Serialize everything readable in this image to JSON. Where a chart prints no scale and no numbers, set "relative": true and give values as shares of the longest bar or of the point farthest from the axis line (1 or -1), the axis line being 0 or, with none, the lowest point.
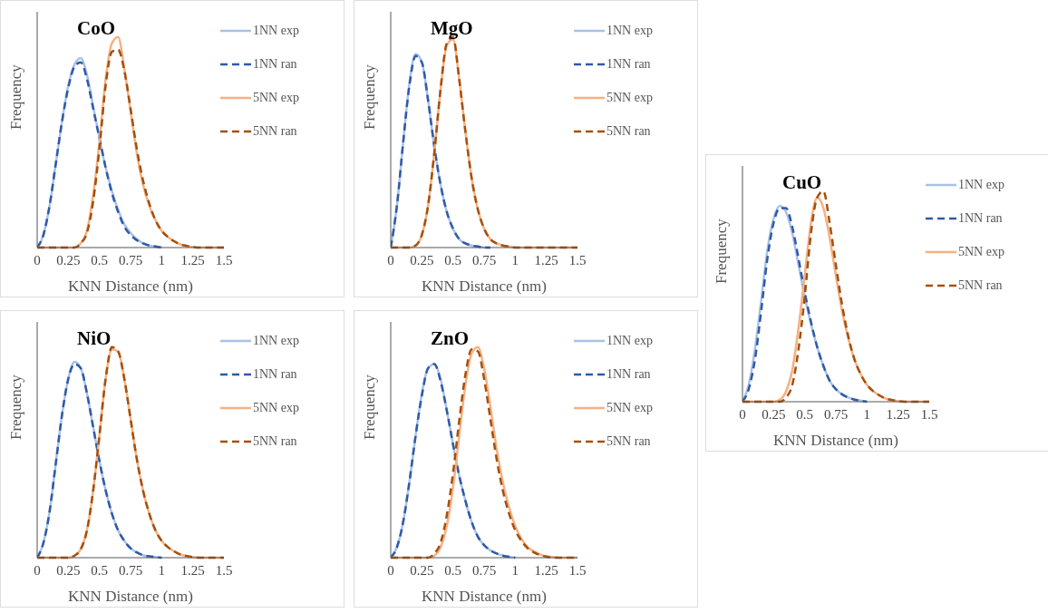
{
  "chart_data": [
    {
      "type": "line",
      "title": "CoO",
      "xlabel": "KNN Distance (nm)",
      "ylabel": "Frequency",
      "relative": true,
      "legend": "top right",
      "marker": "none",
      "grid": false,
      "x": [
        0,
        0.05,
        0.1,
        0.15,
        0.2,
        0.25,
        0.3,
        0.35,
        0.4,
        0.45,
        0.5,
        0.55,
        0.6,
        0.65,
        0.7,
        0.75,
        0.8,
        0.85,
        0.9,
        0.95,
        1,
        1.05,
        1.1,
        1.15,
        1.2,
        1.25,
        1.3,
        1.35,
        1.4,
        1.45,
        1.5
      ],
      "xlim": [
        0,
        1.5
      ],
      "xticks": [
        0,
        0.25,
        0.5,
        0.75,
        1,
        1.25,
        1.5
      ],
      "series": [
        {
          "name": "1NN exp",
          "color": "#a9c1e6",
          "line_style": "solid",
          "values": [
            0,
            0.06,
            0.2,
            0.4,
            0.6,
            0.77,
            0.87,
            0.9,
            0.82,
            0.67,
            0.52,
            0.38,
            0.27,
            0.18,
            0.11,
            0.07,
            0.04,
            0.02,
            0.01,
            0.005,
            0,
            null,
            null,
            null,
            null,
            null,
            null,
            null,
            null,
            null,
            null
          ]
        },
        {
          "name": "1NN ran",
          "color": "#2f5aa8",
          "line_style": "dashed",
          "values": [
            0,
            0.06,
            0.2,
            0.4,
            0.6,
            0.76,
            0.86,
            0.88,
            0.8,
            0.66,
            0.52,
            0.38,
            0.26,
            0.17,
            0.1,
            0.06,
            0.035,
            0.02,
            0.01,
            0.005,
            0,
            null,
            null,
            null,
            null,
            null,
            null,
            null,
            null,
            null,
            null
          ]
        },
        {
          "name": "5NN exp",
          "color": "#f4b183",
          "line_style": "solid",
          "values": [
            0,
            0,
            0,
            0,
            0,
            0,
            0,
            0.02,
            0.08,
            0.25,
            0.5,
            0.8,
            0.97,
            1,
            0.85,
            0.65,
            0.45,
            0.3,
            0.2,
            0.13,
            0.08,
            0.05,
            0.03,
            0.015,
            0.008,
            0.003,
            0,
            0,
            0,
            0,
            0
          ]
        },
        {
          "name": "5NN ran",
          "color": "#a5500c",
          "line_style": "dashed",
          "values": [
            0,
            0,
            0,
            0,
            0,
            0,
            0,
            0.02,
            0.07,
            0.22,
            0.47,
            0.77,
            0.93,
            0.94,
            0.84,
            0.66,
            0.47,
            0.32,
            0.21,
            0.13,
            0.08,
            0.05,
            0.03,
            0.015,
            0.008,
            0.003,
            0,
            0,
            0,
            0,
            0
          ]
        }
      ]
    },
    {
      "type": "line",
      "title": "MgO",
      "xlabel": "KNN Distance (nm)",
      "ylabel": "Frequency",
      "relative": true,
      "legend": "top right",
      "marker": "none",
      "grid": false,
      "x": [
        0,
        0.05,
        0.1,
        0.15,
        0.2,
        0.25,
        0.3,
        0.35,
        0.4,
        0.45,
        0.5,
        0.55,
        0.6,
        0.65,
        0.7,
        0.75,
        0.8,
        0.85,
        0.9,
        0.95,
        1,
        1.05,
        1.1,
        1.15,
        1.2,
        1.25,
        1.3,
        1.35,
        1.4,
        1.45,
        1.5
      ],
      "xlim": [
        0,
        1.5
      ],
      "xticks": [
        0,
        0.25,
        0.5,
        0.75,
        1,
        1.25,
        1.5
      ],
      "series": [
        {
          "name": "1NN exp",
          "color": "#a9c1e6",
          "line_style": "solid",
          "values": [
            0,
            0.2,
            0.5,
            0.78,
            0.92,
            0.88,
            0.7,
            0.48,
            0.3,
            0.17,
            0.09,
            0.04,
            0.02,
            0.01,
            0.005,
            0,
            0,
            null,
            null,
            null,
            null,
            null,
            null,
            null,
            null,
            null,
            null,
            null,
            null,
            null,
            null
          ]
        },
        {
          "name": "1NN ran",
          "color": "#2f5aa8",
          "line_style": "dashed",
          "values": [
            0,
            0.2,
            0.5,
            0.77,
            0.91,
            0.88,
            0.7,
            0.48,
            0.3,
            0.17,
            0.09,
            0.04,
            0.02,
            0.01,
            0.005,
            0,
            0,
            null,
            null,
            null,
            null,
            null,
            null,
            null,
            null,
            null,
            null,
            null,
            null,
            null,
            null
          ]
        },
        {
          "name": "5NN exp",
          "color": "#f4b183",
          "line_style": "solid",
          "values": [
            0,
            0,
            0,
            0,
            0.01,
            0.06,
            0.2,
            0.45,
            0.75,
            0.96,
            0.99,
            0.8,
            0.55,
            0.33,
            0.18,
            0.09,
            0.04,
            0.02,
            0.01,
            0.005,
            0,
            0,
            0,
            0,
            0,
            0,
            0,
            0,
            0,
            0,
            0
          ]
        },
        {
          "name": "5NN ran",
          "color": "#a5500c",
          "line_style": "dashed",
          "values": [
            0,
            0,
            0,
            0,
            0.01,
            0.06,
            0.2,
            0.45,
            0.75,
            0.97,
            1,
            0.8,
            0.55,
            0.33,
            0.18,
            0.09,
            0.04,
            0.02,
            0.01,
            0.005,
            0,
            0,
            0,
            0,
            0,
            0,
            0,
            0,
            0,
            0,
            0
          ]
        }
      ]
    },
    {
      "type": "line",
      "title": "CuO",
      "xlabel": "KNN Distance (nm)",
      "ylabel": "Frequency",
      "relative": true,
      "legend": "top right",
      "marker": "none",
      "grid": false,
      "x": [
        0,
        0.05,
        0.1,
        0.15,
        0.2,
        0.25,
        0.3,
        0.35,
        0.4,
        0.45,
        0.5,
        0.55,
        0.6,
        0.65,
        0.7,
        0.75,
        0.8,
        0.85,
        0.9,
        0.95,
        1,
        1.05,
        1.1,
        1.15,
        1.2,
        1.25,
        1.3,
        1.35,
        1.4,
        1.45,
        1.5
      ],
      "xlim": [
        0,
        1.5
      ],
      "xticks": [
        0,
        0.25,
        0.5,
        0.75,
        1,
        1.25,
        1.5
      ],
      "series": [
        {
          "name": "1NN exp",
          "color": "#a9c1e6",
          "line_style": "solid",
          "values": [
            0,
            0.08,
            0.25,
            0.48,
            0.72,
            0.87,
            0.93,
            0.9,
            0.8,
            0.65,
            0.5,
            0.37,
            0.26,
            0.17,
            0.1,
            0.06,
            0.035,
            0.02,
            0.01,
            0.005,
            0,
            null,
            null,
            null,
            null,
            null,
            null,
            null,
            null,
            null,
            null
          ]
        },
        {
          "name": "1NN ran",
          "color": "#2f5aa8",
          "line_style": "dashed",
          "values": [
            0,
            0.06,
            0.2,
            0.43,
            0.68,
            0.85,
            0.92,
            0.92,
            0.83,
            0.68,
            0.52,
            0.38,
            0.26,
            0.17,
            0.1,
            0.06,
            0.035,
            0.02,
            0.01,
            0.005,
            0,
            null,
            null,
            null,
            null,
            null,
            null,
            null,
            null,
            null,
            null
          ]
        },
        {
          "name": "5NN exp",
          "color": "#f4b183",
          "line_style": "solid",
          "values": [
            0,
            0,
            0,
            0,
            0,
            0,
            0.01,
            0.05,
            0.15,
            0.35,
            0.6,
            0.85,
            0.97,
            0.92,
            0.78,
            0.6,
            0.43,
            0.3,
            0.2,
            0.13,
            0.08,
            0.05,
            0.03,
            0.015,
            0.008,
            0.003,
            0,
            0,
            0,
            0,
            0
          ]
        },
        {
          "name": "5NN ran",
          "color": "#a5500c",
          "line_style": "dashed",
          "values": [
            0,
            0,
            0,
            0,
            0,
            0,
            0,
            0.02,
            0.08,
            0.25,
            0.5,
            0.8,
            0.97,
            1,
            0.85,
            0.65,
            0.46,
            0.31,
            0.2,
            0.13,
            0.08,
            0.05,
            0.03,
            0.015,
            0.008,
            0.003,
            0,
            0,
            0,
            0,
            0
          ]
        }
      ]
    },
    {
      "type": "line",
      "title": "NiO",
      "xlabel": "KNN Distance (nm)",
      "ylabel": "Frequency",
      "relative": true,
      "legend": "top right",
      "marker": "none",
      "grid": false,
      "x": [
        0,
        0.05,
        0.1,
        0.15,
        0.2,
        0.25,
        0.3,
        0.35,
        0.4,
        0.45,
        0.5,
        0.55,
        0.6,
        0.65,
        0.7,
        0.75,
        0.8,
        0.85,
        0.9,
        0.95,
        1,
        1.05,
        1.1,
        1.15,
        1.2,
        1.25,
        1.3,
        1.35,
        1.4,
        1.45,
        1.5
      ],
      "xlim": [
        0,
        1.5
      ],
      "xticks": [
        0,
        0.25,
        0.5,
        0.75,
        1,
        1.25,
        1.5
      ],
      "series": [
        {
          "name": "1NN exp",
          "color": "#a9c1e6",
          "line_style": "solid",
          "values": [
            0,
            0.07,
            0.22,
            0.45,
            0.68,
            0.85,
            0.93,
            0.9,
            0.78,
            0.62,
            0.46,
            0.32,
            0.21,
            0.13,
            0.08,
            0.045,
            0.025,
            0.012,
            0.006,
            0.003,
            0,
            null,
            null,
            null,
            null,
            null,
            null,
            null,
            null,
            null,
            null
          ]
        },
        {
          "name": "1NN ran",
          "color": "#2f5aa8",
          "line_style": "dashed",
          "values": [
            0,
            0.07,
            0.22,
            0.45,
            0.68,
            0.85,
            0.92,
            0.9,
            0.78,
            0.62,
            0.46,
            0.32,
            0.21,
            0.13,
            0.08,
            0.045,
            0.025,
            0.012,
            0.006,
            0.003,
            0,
            null,
            null,
            null,
            null,
            null,
            null,
            null,
            null,
            null,
            null
          ]
        },
        {
          "name": "5NN exp",
          "color": "#f4b183",
          "line_style": "solid",
          "values": [
            0,
            0,
            0,
            0,
            0,
            0,
            0.01,
            0.04,
            0.13,
            0.32,
            0.58,
            0.85,
            0.99,
            0.98,
            0.85,
            0.66,
            0.47,
            0.32,
            0.21,
            0.13,
            0.08,
            0.05,
            0.03,
            0.015,
            0.008,
            0.003,
            0,
            0,
            0,
            0,
            0
          ]
        },
        {
          "name": "5NN ran",
          "color": "#a5500c",
          "line_style": "dashed",
          "values": [
            0,
            0,
            0,
            0,
            0,
            0,
            0.01,
            0.04,
            0.13,
            0.32,
            0.58,
            0.85,
            1,
            0.98,
            0.85,
            0.66,
            0.47,
            0.32,
            0.21,
            0.13,
            0.08,
            0.05,
            0.03,
            0.015,
            0.008,
            0.003,
            0,
            0,
            0,
            0,
            0
          ]
        }
      ]
    },
    {
      "type": "line",
      "title": "ZnO",
      "xlabel": "KNN Distance (nm)",
      "ylabel": "Frequency",
      "relative": true,
      "legend": "top right",
      "marker": "none",
      "grid": false,
      "x": [
        0,
        0.05,
        0.1,
        0.15,
        0.2,
        0.25,
        0.3,
        0.35,
        0.4,
        0.45,
        0.5,
        0.55,
        0.6,
        0.65,
        0.7,
        0.75,
        0.8,
        0.85,
        0.9,
        0.95,
        1,
        1.05,
        1.1,
        1.15,
        1.2,
        1.25,
        1.3,
        1.35,
        1.4,
        1.45,
        1.5
      ],
      "xlim": [
        0,
        1.5
      ],
      "xticks": [
        0,
        0.25,
        0.5,
        0.75,
        1,
        1.25,
        1.5
      ],
      "series": [
        {
          "name": "1NN exp",
          "color": "#a9c1e6",
          "line_style": "solid",
          "values": [
            0,
            0.05,
            0.17,
            0.36,
            0.58,
            0.78,
            0.9,
            0.92,
            0.85,
            0.7,
            0.54,
            0.39,
            0.27,
            0.17,
            0.1,
            0.06,
            0.035,
            0.02,
            0.01,
            0.004,
            0,
            null,
            null,
            null,
            null,
            null,
            null,
            null,
            null,
            null,
            null
          ]
        },
        {
          "name": "1NN ran",
          "color": "#2f5aa8",
          "line_style": "dashed",
          "values": [
            0,
            0.05,
            0.17,
            0.36,
            0.58,
            0.77,
            0.9,
            0.92,
            0.84,
            0.7,
            0.54,
            0.39,
            0.27,
            0.17,
            0.1,
            0.06,
            0.035,
            0.02,
            0.01,
            0.004,
            0,
            null,
            null,
            null,
            null,
            null,
            null,
            null,
            null,
            null,
            null
          ]
        },
        {
          "name": "5NN exp",
          "color": "#f4b183",
          "line_style": "solid",
          "values": [
            0,
            0,
            0,
            0,
            0,
            0,
            0,
            0.01,
            0.05,
            0.15,
            0.33,
            0.58,
            0.82,
            0.97,
            1,
            0.9,
            0.72,
            0.52,
            0.36,
            0.24,
            0.15,
            0.09,
            0.05,
            0.03,
            0.015,
            0.007,
            0.003,
            0,
            0,
            0,
            0
          ]
        },
        {
          "name": "5NN ran",
          "color": "#a5500c",
          "line_style": "dashed",
          "values": [
            0,
            0,
            0,
            0,
            0,
            0,
            0,
            0.02,
            0.07,
            0.2,
            0.4,
            0.65,
            0.87,
            0.99,
            0.98,
            0.85,
            0.66,
            0.47,
            0.32,
            0.21,
            0.13,
            0.08,
            0.045,
            0.025,
            0.012,
            0.005,
            0,
            0,
            0,
            0,
            0
          ]
        }
      ]
    }
  ]
}
